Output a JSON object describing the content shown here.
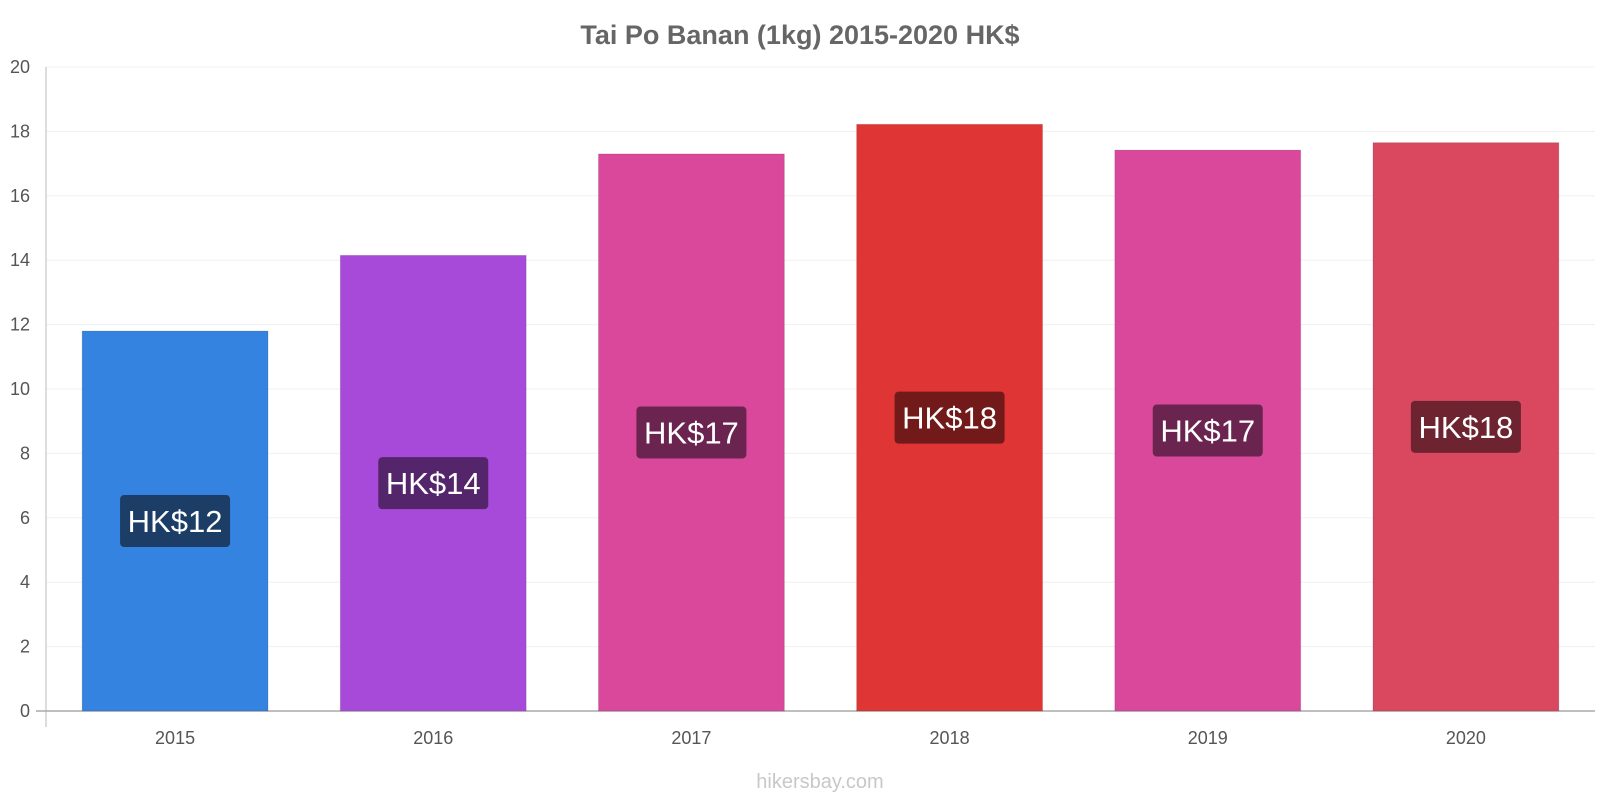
{
  "chart_data": {
    "type": "bar",
    "title": "Tai Po Banan (1kg) 2015-2020 HK$",
    "categories": [
      "2015",
      "2016",
      "2017",
      "2018",
      "2019",
      "2020"
    ],
    "values": [
      11.8,
      14.15,
      17.3,
      18.22,
      17.42,
      17.65
    ],
    "data_labels": [
      "HK$12",
      "HK$14",
      "HK$17",
      "HK$18",
      "HK$17",
      "HK$18"
    ],
    "bar_colors": [
      "#3583e0",
      "#a84ad9",
      "#d9489b",
      "#e03535",
      "#d9489b",
      "#d9485f"
    ],
    "label_colors": [
      "#1b3d66",
      "#55256c",
      "#6b2450",
      "#721a1a",
      "#6b2450",
      "#6e2430"
    ],
    "ylim": [
      0,
      20
    ],
    "yticks": [
      "0",
      "2",
      "4",
      "6",
      "8",
      "10",
      "12",
      "14",
      "16",
      "18",
      "20"
    ],
    "xlabel": "",
    "ylabel": "",
    "grid": true,
    "source": "hikersbay.com"
  }
}
